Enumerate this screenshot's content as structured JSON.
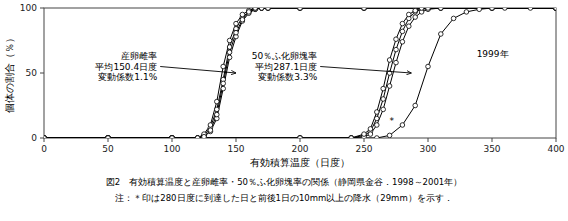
{
  "chart_data": {
    "type": "line",
    "xlabel": "有効積算温度（日度）",
    "ylabel": "個体の割合（％）",
    "caption": "図2　有効積算温度と産卵雌率・50％ふ化卵塊率の関係（静岡県金谷．1998～2001年）",
    "note": "注：＊印は280日度に到達した日と前後1日の10mm以上の降水（29mm）を示す．",
    "xlim": [
      0,
      400
    ],
    "ylim": [
      0,
      100
    ],
    "xticks": [
      0,
      50,
      100,
      150,
      200,
      250,
      300,
      350,
      400
    ],
    "yticks": [
      0,
      50,
      100
    ],
    "color": "#000000",
    "marker": "circle",
    "annotations": [
      {
        "text": "産卵雌率\n平均150.4日度\n変動係数1.1%",
        "x": 90,
        "y": 55,
        "arrow_x": 150,
        "arrow_y": 50
      },
      {
        "text": "50％ふ化卵塊率\n平均287.1日度\n変動係数3.3%",
        "x": 215,
        "y": 55,
        "arrow_x": 287,
        "arrow_y": 50
      },
      {
        "text": "*",
        "x": 270,
        "y": 13
      },
      {
        "text": "1999年",
        "x": 338,
        "y": 65
      }
    ],
    "series": [
      {
        "x": [
          0,
          50,
          100,
          120,
          125,
          130,
          135,
          140,
          145,
          150,
          155,
          160,
          165,
          170,
          175,
          200,
          250,
          300,
          400
        ],
        "values": [
          0,
          0,
          0,
          0,
          2,
          8,
          22,
          45,
          70,
          84,
          93,
          97,
          99,
          100,
          100,
          100,
          100,
          100,
          100
        ]
      },
      {
        "x": [
          0,
          50,
          100,
          120,
          125,
          130,
          135,
          140,
          145,
          150,
          155,
          160,
          165,
          170,
          175,
          200,
          250,
          300,
          400
        ],
        "values": [
          0,
          0,
          0,
          0,
          1,
          5,
          15,
          38,
          62,
          78,
          90,
          96,
          99,
          100,
          100,
          100,
          100,
          100,
          100
        ]
      },
      {
        "x": [
          0,
          50,
          100,
          120,
          125,
          130,
          135,
          140,
          145,
          150,
          155,
          160,
          165,
          170,
          175,
          200,
          250,
          300,
          400
        ],
        "values": [
          0,
          0,
          0,
          0,
          3,
          10,
          28,
          55,
          75,
          88,
          95,
          98,
          100,
          100,
          100,
          100,
          100,
          100,
          100
        ]
      },
      {
        "x": [
          0,
          50,
          100,
          120,
          125,
          130,
          135,
          140,
          145,
          150,
          155,
          160,
          165,
          170,
          175,
          200,
          250,
          300,
          400
        ],
        "values": [
          0,
          0,
          0,
          0,
          1,
          6,
          18,
          42,
          66,
          81,
          91,
          97,
          100,
          100,
          100,
          100,
          100,
          100,
          100
        ]
      },
      {
        "x": [
          0,
          50,
          100,
          200,
          240,
          250,
          255,
          260,
          265,
          270,
          275,
          280,
          285,
          290,
          295,
          300,
          310,
          350,
          400
        ],
        "values": [
          0,
          0,
          0,
          0,
          0,
          2,
          5,
          15,
          30,
          50,
          68,
          82,
          92,
          97,
          99,
          100,
          100,
          100,
          100
        ]
      },
      {
        "x": [
          0,
          50,
          100,
          200,
          240,
          250,
          255,
          260,
          265,
          270,
          275,
          280,
          285,
          290,
          295,
          300,
          310,
          350,
          400
        ],
        "values": [
          0,
          0,
          0,
          0,
          0,
          1,
          3,
          10,
          22,
          40,
          58,
          74,
          86,
          93,
          97,
          99,
          100,
          100,
          100
        ]
      },
      {
        "x": [
          0,
          50,
          100,
          200,
          240,
          250,
          255,
          260,
          265,
          270,
          275,
          280,
          285,
          290,
          295,
          300,
          310,
          350,
          400
        ],
        "values": [
          0,
          0,
          0,
          0,
          0,
          3,
          7,
          20,
          38,
          60,
          76,
          88,
          95,
          98,
          100,
          100,
          100,
          100,
          100
        ]
      },
      {
        "x": [
          0,
          50,
          100,
          200,
          240,
          260,
          270,
          280,
          290,
          300,
          310,
          320,
          330,
          340,
          350,
          360,
          380,
          400
        ],
        "values": [
          0,
          0,
          0,
          0,
          0,
          0,
          2,
          10,
          25,
          55,
          80,
          92,
          97,
          99,
          100,
          100,
          100,
          100
        ]
      }
    ]
  }
}
